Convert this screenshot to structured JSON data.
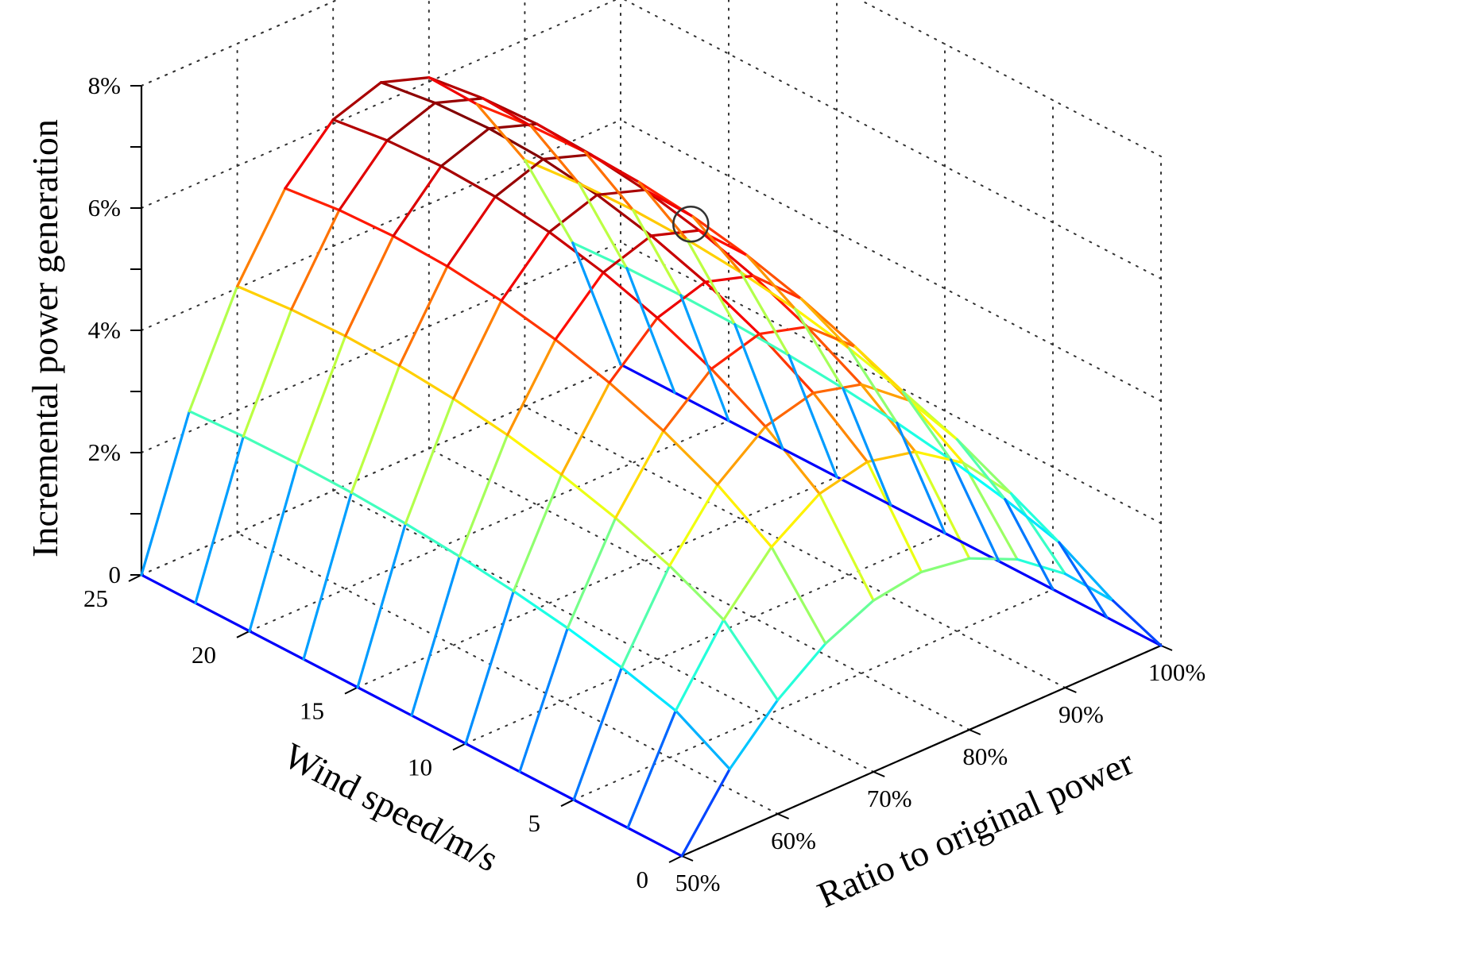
{
  "chart_data": {
    "type": "surface",
    "xlabel": "Wind speed/m/s",
    "ylabel": "Ratio to original power",
    "zlabel": "Incremental power generation",
    "xlim": [
      0,
      25
    ],
    "ylim": [
      0.5,
      1.0
    ],
    "zlim": [
      0,
      0.08
    ],
    "x_ticks": [
      "0",
      "5",
      "10",
      "15",
      "20",
      "25"
    ],
    "y_ticks": [
      "50%",
      "60%",
      "70%",
      "80%",
      "90%",
      "100%"
    ],
    "z_ticks": [
      "0",
      "2%",
      "4%",
      "6%",
      "8%"
    ],
    "grid": true,
    "colormap": "jet",
    "wind_speed": [
      0,
      2.5,
      5,
      7.5,
      10,
      12.5,
      15,
      17.5,
      20,
      22.5,
      25
    ],
    "ratio": [
      0.5,
      0.55,
      0.6,
      0.65,
      0.7,
      0.75,
      0.8,
      0.85,
      0.9,
      0.95,
      1.0
    ],
    "increment_peak": 0.065,
    "increment_at_edges": 0.0,
    "highlighted_point": {
      "wind_speed": 12,
      "ratio": 0.78,
      "increment": 0.062
    }
  }
}
